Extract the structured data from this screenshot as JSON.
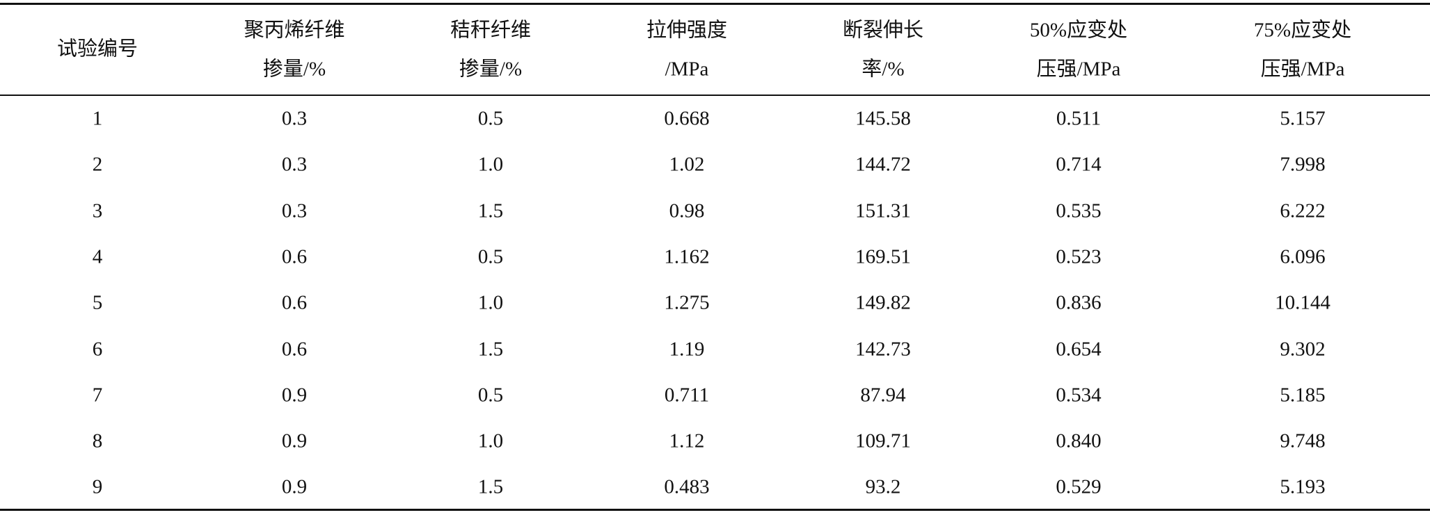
{
  "table": {
    "header": [
      [
        "试验编号"
      ],
      [
        "聚丙烯纤维",
        "掺量/%"
      ],
      [
        "秸秆纤维",
        "掺量/%"
      ],
      [
        "拉伸强度",
        "/MPa"
      ],
      [
        "断裂伸长",
        "率/%"
      ],
      [
        "50%应变处",
        "压强/MPa"
      ],
      [
        "75%应变处",
        "压强/MPa"
      ]
    ],
    "rows": [
      [
        "1",
        "0.3",
        "0.5",
        "0.668",
        "145.58",
        "0.511",
        "5.157"
      ],
      [
        "2",
        "0.3",
        "1.0",
        "1.02",
        "144.72",
        "0.714",
        "7.998"
      ],
      [
        "3",
        "0.3",
        "1.5",
        "0.98",
        "151.31",
        "0.535",
        "6.222"
      ],
      [
        "4",
        "0.6",
        "0.5",
        "1.162",
        "169.51",
        "0.523",
        "6.096"
      ],
      [
        "5",
        "0.6",
        "1.0",
        "1.275",
        "149.82",
        "0.836",
        "10.144"
      ],
      [
        "6",
        "0.6",
        "1.5",
        "1.19",
        "142.73",
        "0.654",
        "9.302"
      ],
      [
        "7",
        "0.9",
        "0.5",
        "0.711",
        "87.94",
        "0.534",
        "5.185"
      ],
      [
        "8",
        "0.9",
        "1.0",
        "1.12",
        "109.71",
        "0.840",
        "9.748"
      ],
      [
        "9",
        "0.9",
        "1.5",
        "0.483",
        "93.2",
        "0.529",
        "5.193"
      ]
    ]
  }
}
